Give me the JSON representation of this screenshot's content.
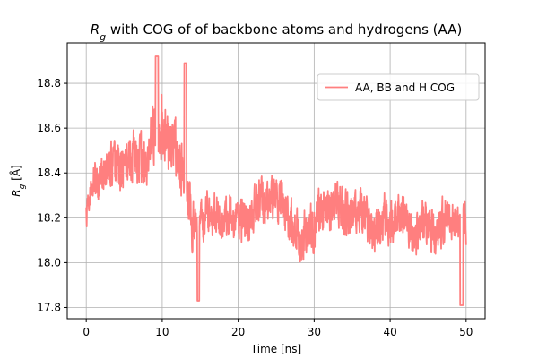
{
  "chart_data": {
    "type": "line",
    "title_main": "R",
    "title_sub": "g",
    "title_rest": " with COG of of backbone atoms and hydrogens (AA)",
    "xlabel": "Time [ns]",
    "ylabel_main": "R",
    "ylabel_sub": "g",
    "ylabel_unit": " [Å]",
    "xlim": [
      -2.5,
      52.5
    ],
    "ylim": [
      17.75,
      18.98
    ],
    "xticks": [
      0,
      10,
      20,
      30,
      40,
      50
    ],
    "xtick_labels": [
      "0",
      "10",
      "20",
      "30",
      "40",
      "50"
    ],
    "yticks": [
      17.8,
      18.0,
      18.2,
      18.4,
      18.6,
      18.8
    ],
    "ytick_labels": [
      "17.8",
      "18.0",
      "18.2",
      "18.4",
      "18.6",
      "18.8"
    ],
    "grid": true,
    "legend_position": "upper right",
    "series": [
      {
        "name": "AA, BB and H COG",
        "color": "#ff7f7f",
        "x": [
          0,
          1,
          2,
          3,
          4,
          5,
          6,
          7,
          8,
          9,
          10,
          11,
          12,
          13,
          14,
          15,
          16,
          17,
          18,
          19,
          20,
          21,
          22,
          23,
          24,
          25,
          26,
          27,
          28,
          29,
          30,
          31,
          32,
          33,
          34,
          35,
          36,
          37,
          38,
          39,
          40,
          41,
          42,
          43,
          44,
          45,
          46,
          47,
          48,
          49,
          50
        ],
        "y": [
          18.22,
          18.33,
          18.36,
          18.4,
          18.42,
          18.47,
          18.5,
          18.48,
          18.46,
          18.54,
          18.57,
          18.5,
          18.47,
          18.44,
          18.17,
          18.21,
          18.24,
          18.15,
          18.18,
          18.21,
          18.17,
          18.22,
          18.27,
          18.28,
          18.28,
          18.24,
          18.21,
          18.18,
          18.12,
          18.16,
          18.21,
          18.25,
          18.24,
          18.22,
          18.19,
          18.23,
          18.25,
          18.22,
          18.18,
          18.2,
          18.17,
          18.16,
          18.18,
          18.13,
          18.19,
          18.21,
          18.16,
          18.18,
          18.17,
          18.15,
          18.14
        ],
        "spread": [
          0.12,
          0.16,
          0.18,
          0.18,
          0.2,
          0.2,
          0.21,
          0.2,
          0.21,
          0.24,
          0.24,
          0.23,
          0.22,
          0.22,
          0.2,
          0.19,
          0.18,
          0.18,
          0.17,
          0.18,
          0.17,
          0.18,
          0.18,
          0.18,
          0.18,
          0.17,
          0.17,
          0.18,
          0.2,
          0.22,
          0.19,
          0.18,
          0.17,
          0.18,
          0.18,
          0.17,
          0.17,
          0.17,
          0.17,
          0.18,
          0.18,
          0.17,
          0.17,
          0.17,
          0.18,
          0.18,
          0.17,
          0.18,
          0.17,
          0.17,
          0.18
        ]
      }
    ]
  }
}
